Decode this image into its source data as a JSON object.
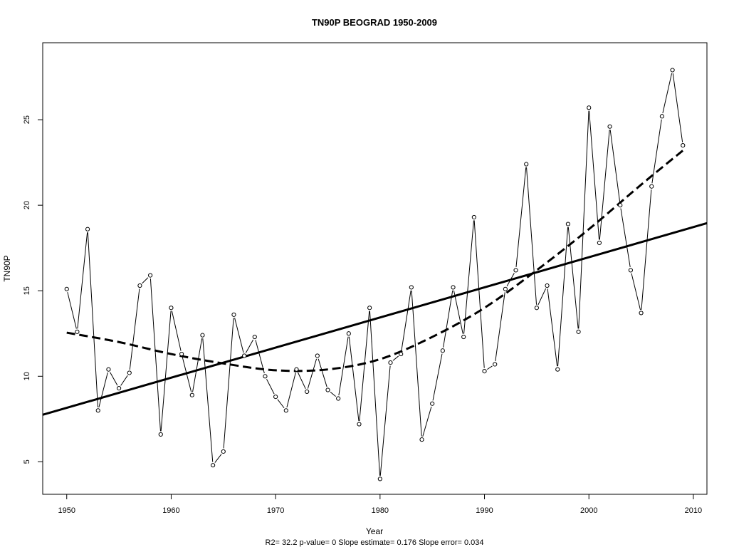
{
  "chart_data": {
    "type": "line",
    "title": "TN90P   BEOGRAD 1950-2009",
    "xlabel": "Year",
    "ylabel": "TN90P",
    "subtitle": "R2= 32.2  p-value= 0  Slope estimate= 0.176  Slope error= 0.034",
    "xlim": [
      1947.7,
      2011.3
    ],
    "ylim": [
      3.1,
      29.5
    ],
    "xticks": [
      1950,
      1960,
      1970,
      1980,
      1990,
      2000,
      2010
    ],
    "yticks": [
      5,
      10,
      15,
      20,
      25
    ],
    "grid": false,
    "legend": "none",
    "x": [
      1950,
      1951,
      1952,
      1953,
      1954,
      1955,
      1956,
      1957,
      1958,
      1959,
      1960,
      1961,
      1962,
      1963,
      1964,
      1965,
      1966,
      1967,
      1968,
      1969,
      1970,
      1971,
      1972,
      1973,
      1974,
      1975,
      1976,
      1977,
      1978,
      1979,
      1980,
      1981,
      1982,
      1983,
      1984,
      1985,
      1986,
      1987,
      1988,
      1989,
      1990,
      1991,
      1992,
      1993,
      1994,
      1995,
      1996,
      1997,
      1998,
      1999,
      2000,
      2001,
      2002,
      2003,
      2004,
      2005,
      2006,
      2007,
      2008,
      2009
    ],
    "series": [
      {
        "style": "observed",
        "values": [
          15.1,
          12.6,
          18.6,
          8.0,
          10.4,
          9.3,
          10.2,
          15.3,
          15.9,
          6.6,
          14.0,
          11.3,
          8.9,
          12.4,
          4.8,
          5.6,
          13.6,
          11.2,
          12.3,
          10.0,
          8.8,
          8.0,
          10.4,
          9.1,
          11.2,
          9.2,
          8.7,
          12.5,
          7.2,
          14.0,
          4.0,
          10.8,
          11.3,
          15.2,
          6.3,
          8.4,
          11.5,
          15.2,
          12.3,
          19.3,
          10.3,
          10.7,
          15.1,
          16.2,
          22.4,
          14.0,
          15.3,
          10.4,
          18.9,
          12.6,
          25.7,
          17.8,
          24.6,
          20.0,
          16.2,
          13.7,
          21.1,
          25.2,
          27.9,
          23.5
        ]
      },
      {
        "style": "linear-trend",
        "x": [
          1947.7,
          2011.3
        ],
        "values": [
          7.75,
          18.95
        ]
      },
      {
        "style": "smooth-trend",
        "x": [
          1950,
          1955,
          1960,
          1965,
          1970,
          1975,
          1980,
          1985,
          1990,
          1995,
          2000,
          2005,
          2009
        ],
        "values": [
          12.55,
          12.0,
          11.3,
          10.75,
          10.35,
          10.4,
          11.0,
          12.3,
          14.0,
          16.2,
          18.6,
          21.2,
          23.2
        ]
      }
    ]
  }
}
